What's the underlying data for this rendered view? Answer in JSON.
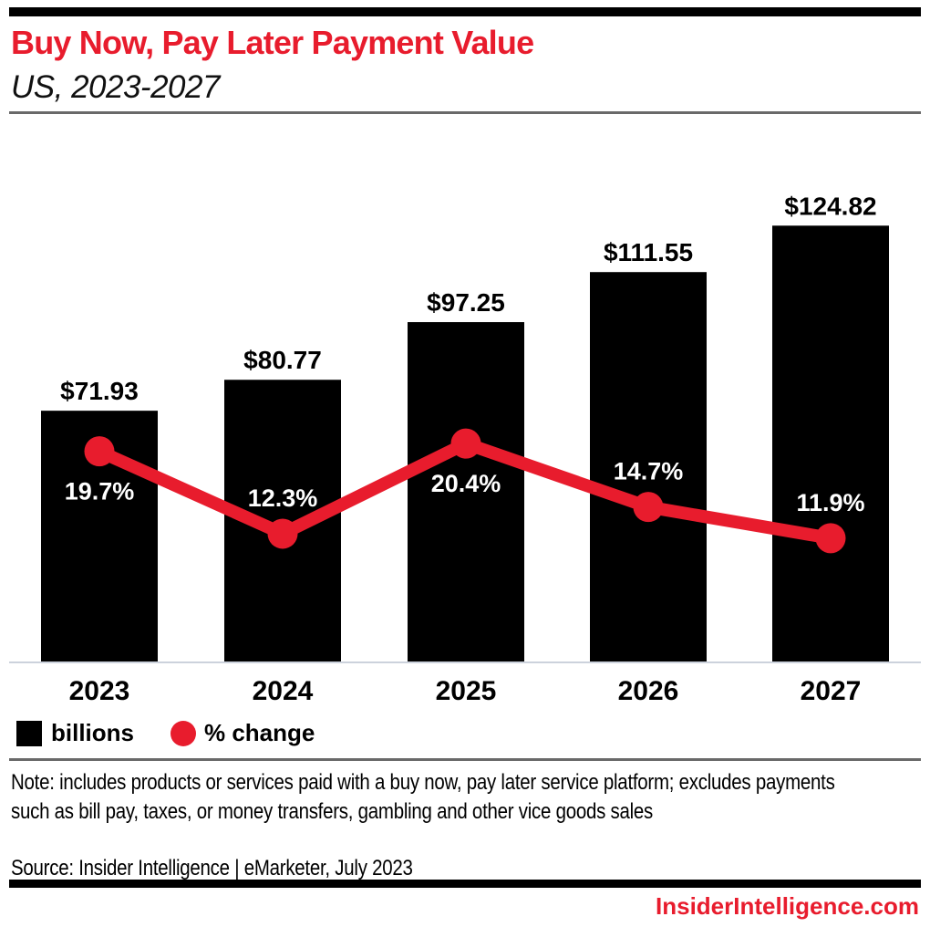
{
  "header": {
    "title": "Buy Now, Pay Later Payment Value",
    "subtitle": "US, 2023-2027"
  },
  "legend": {
    "bars_label": "billions",
    "line_label": "% change"
  },
  "footnote": {
    "note": "Note: includes products or services paid with a buy now, pay later service platform; excludes payments such as bill pay, taxes, or money transfers, gambling and other vice goods sales",
    "source": "Source: Insider Intelligence | eMarketer, July 2023"
  },
  "footer": {
    "site": "InsiderIntelligence.com"
  },
  "colors": {
    "brand_red": "#e81c2d",
    "bar_black": "#000000",
    "axis_line": "#ccd2dc",
    "separator_gray": "#696969",
    "pct_label_text": "#ffffff",
    "value_label_text": "#000000"
  },
  "chart_data": {
    "type": "bar",
    "subtype": "bar+line combo",
    "title": "Buy Now, Pay Later Payment Value",
    "subtitle": "US, 2023-2027",
    "categories": [
      "2023",
      "2024",
      "2025",
      "2026",
      "2027"
    ],
    "series": [
      {
        "name": "billions",
        "type": "bar",
        "values": [
          71.93,
          80.77,
          97.25,
          111.55,
          124.82
        ],
        "labels": [
          "$71.93",
          "$80.77",
          "$97.25",
          "$111.55",
          "$124.82"
        ],
        "color": "#000000"
      },
      {
        "name": "% change",
        "type": "line",
        "values": [
          19.7,
          12.3,
          20.4,
          14.7,
          11.9
        ],
        "labels": [
          "19.7%",
          "12.3%",
          "20.4%",
          "14.7%",
          "11.9%"
        ],
        "color": "#e81c2d",
        "pct_label_side": [
          "below",
          "above",
          "below",
          "above",
          "above"
        ]
      }
    ],
    "xlabel": "",
    "ylabel": "",
    "bar_axis_range": [
      0,
      155
    ],
    "line_axis_range": [
      0,
      60
    ],
    "grid": false,
    "legend_position": "bottom-left",
    "value_labels_shown": true
  }
}
